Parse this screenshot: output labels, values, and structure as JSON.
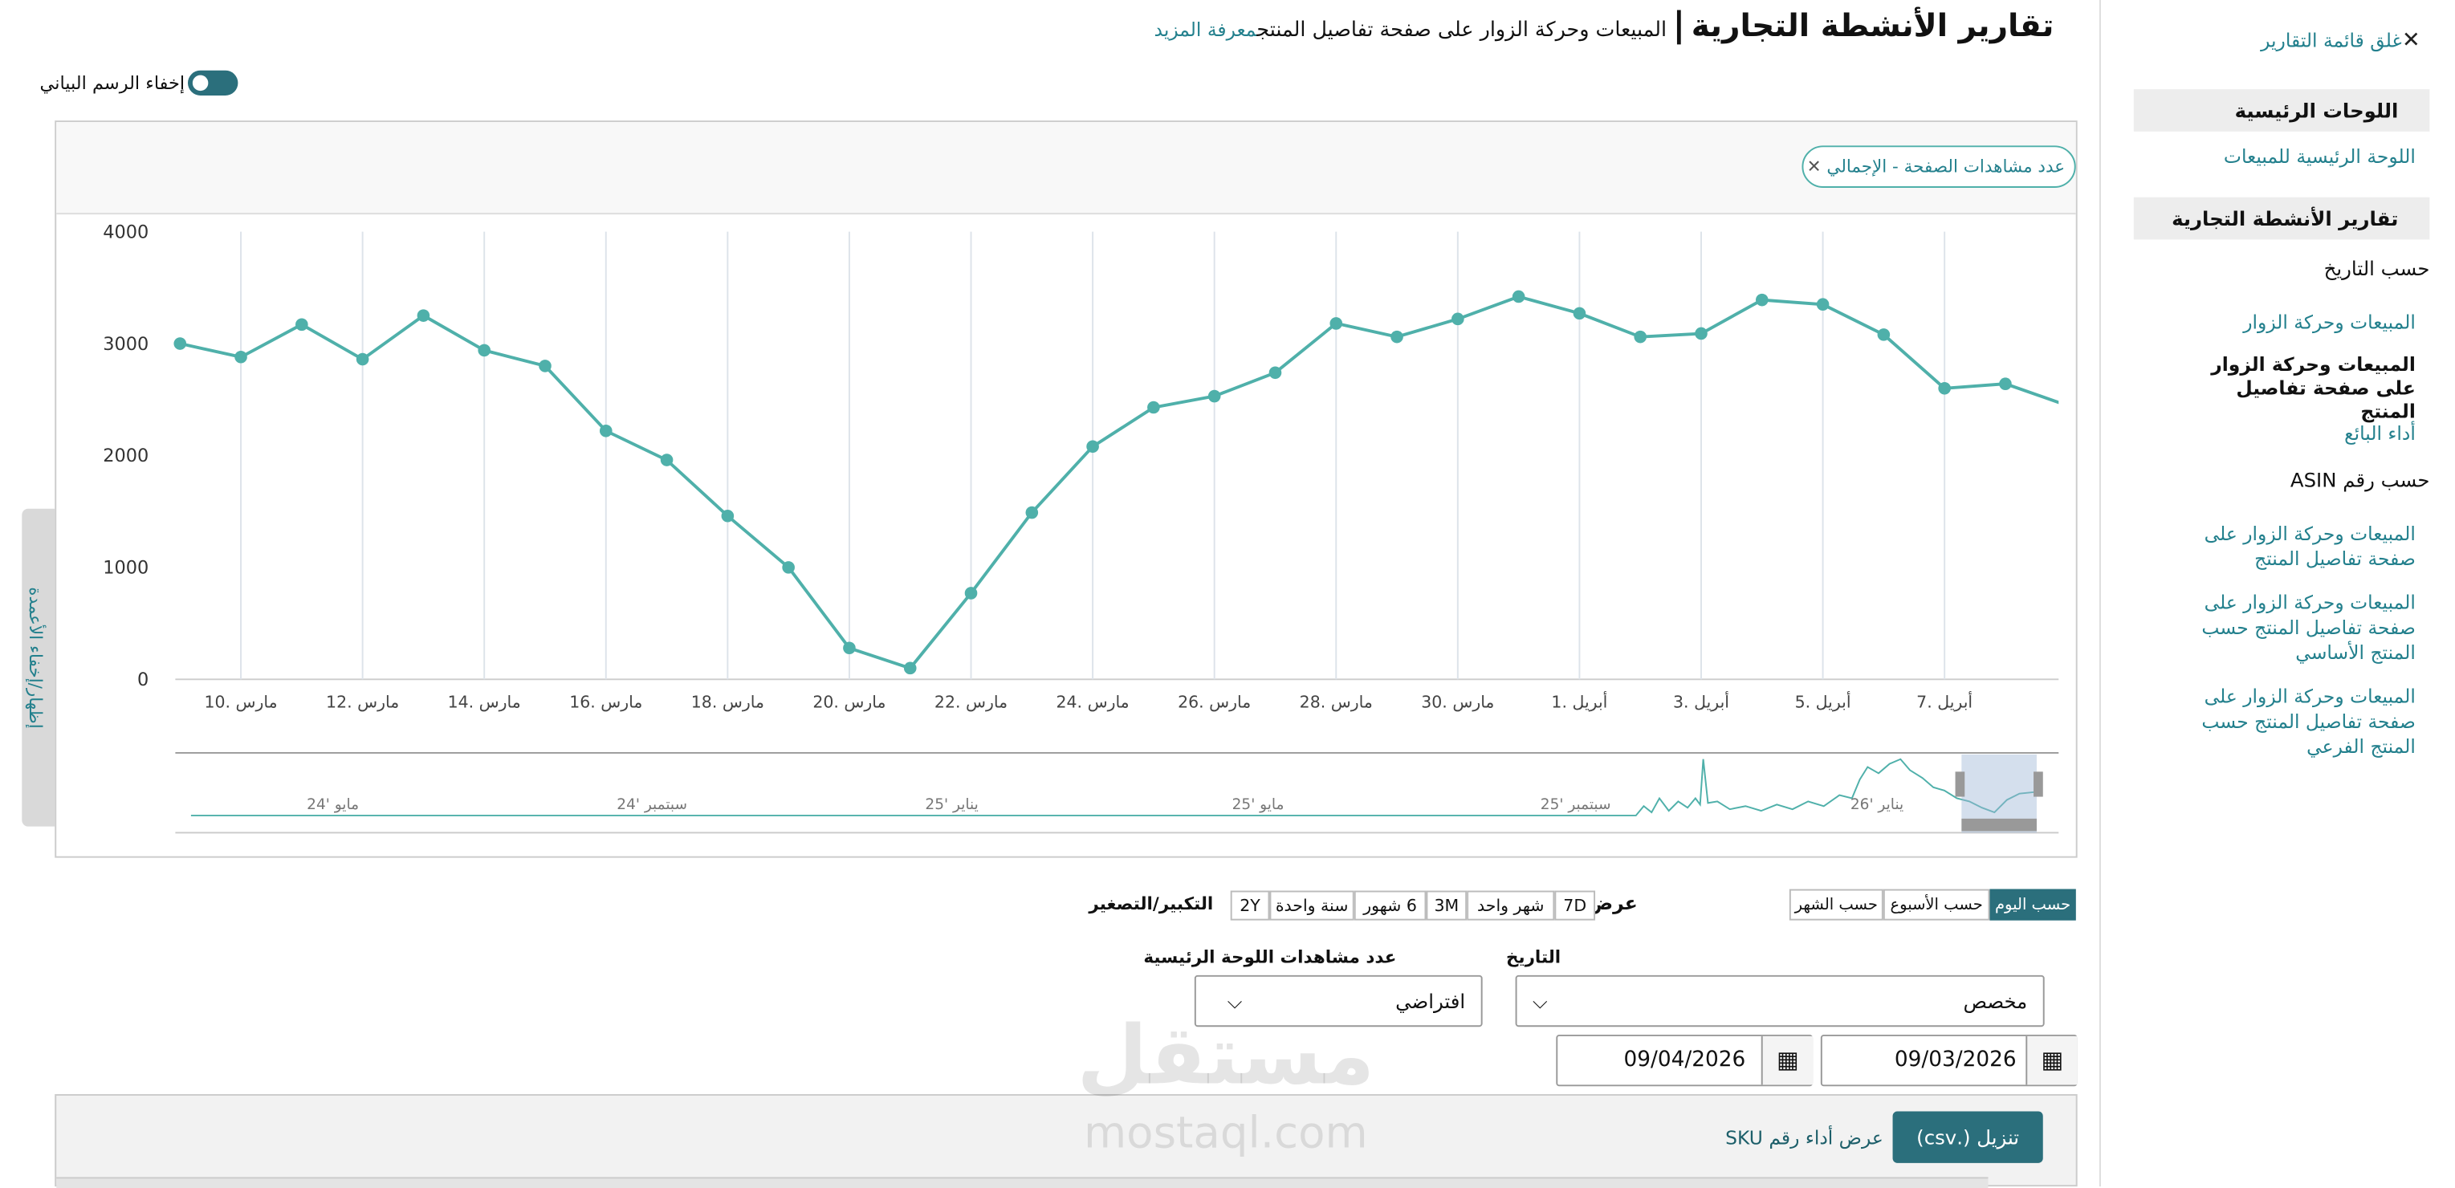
{
  "sidebar": {
    "close": "غلق قائمة التقارير",
    "heading_main": "اللوحات الرئيسية",
    "main_link": "اللوحة الرئيسية للمبيعات",
    "heading_reports": "تقارير الأنشطة التجارية",
    "group_date": "حسب التاريخ",
    "date_links": [
      "المبيعات وحركة الزوار",
      "المبيعات وحركة الزوار على صفحة تفاصيل المنتج",
      "أداء البائع"
    ],
    "group_asin": "حسب رقم ASIN",
    "asin_links": [
      "المبيعات وحركة الزوار على صفحة تفاصيل المنتج",
      "المبيعات وحركة الزوار على صفحة تفاصيل المنتج حسب المنتج الأساسي",
      "المبيعات وحركة الزوار على صفحة تفاصيل المنتج حسب المنتج الفرعي"
    ]
  },
  "header": {
    "title": "تقارير الأنشطة التجارية",
    "subtitle": "المبيعات وحركة الزوار على صفحة تفاصيل المنتج",
    "learn_more": "معرفة المزيد",
    "toggle": "إخفاء الرسم البياني"
  },
  "chart_data": {
    "type": "line",
    "filter_chip": "عدد مشاهدات الصفحة - الإجمالي",
    "color": "#4fb0aa",
    "categories": [
      null,
      "10. مارس",
      null,
      "12. مارس",
      null,
      "14. مارس",
      null,
      "16. مارس",
      null,
      "18. مارس",
      null,
      "20. مارس",
      null,
      "22. مارس",
      null,
      "24. مارس",
      null,
      "26. مارس",
      null,
      "28. مارس",
      null,
      "30. مارس",
      null,
      "1. أبريل",
      null,
      "3. أبريل",
      null,
      "5. أبريل",
      null,
      "7. أبريل",
      null,
      null
    ],
    "values": [
      3000,
      2880,
      3170,
      2860,
      3250,
      2940,
      2800,
      2220,
      1960,
      1460,
      1000,
      280,
      100,
      770,
      1490,
      2080,
      2430,
      2530,
      2740,
      3180,
      3060,
      3220,
      3420,
      3270,
      3060,
      3090,
      3390,
      3350,
      3080,
      2600,
      2640,
      2450
    ],
    "ylim": [
      0,
      4000
    ],
    "yticks": [
      0,
      1000,
      2000,
      3000,
      4000
    ],
    "grid": true,
    "minimap_labels": [
      "مايو '24",
      "سبتمبر '24",
      "يناير '25",
      "مايو '25",
      "سبتمبر '25",
      "يناير '26"
    ],
    "side_tab": "إظهار/إخفاء الأعمدة"
  },
  "controls": {
    "granularity": [
      "حسب اليوم",
      "حسب الأسبوع",
      "حسب الشهر"
    ],
    "view_label": "عرض",
    "ranges": [
      "7D",
      "شهر واحد",
      "3M",
      "6 شهور",
      "سنة واحدة",
      "2Y"
    ],
    "zoom_label": "التكبير/التصغير",
    "date_label": "التاريخ",
    "date_select": "مخصص",
    "pv_label": "عدد مشاهدات اللوحة الرئيسية",
    "pv_select": "افتراضي",
    "start_date": "09/03/2026",
    "end_date": "09/04/2026",
    "download": "تنزيل (.csv)",
    "sku_link": "عرض أداء رقم SKU"
  },
  "watermark": {
    "logo": "مستقل",
    "site": "mostaql.com"
  }
}
